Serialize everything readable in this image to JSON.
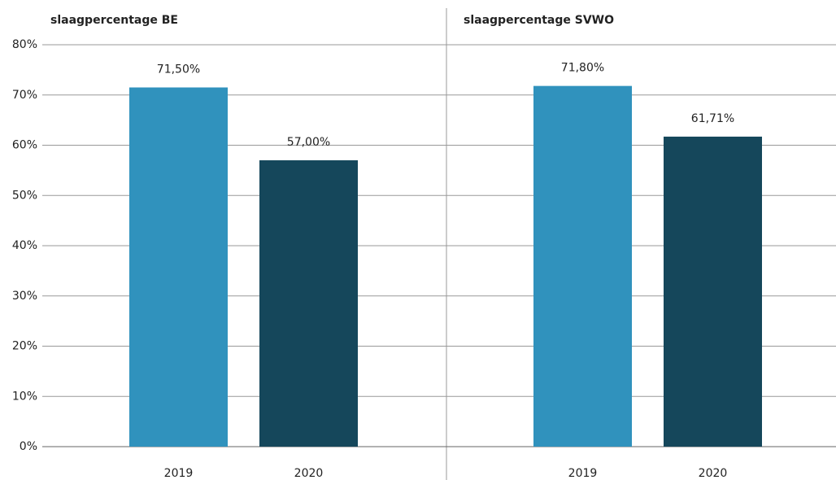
{
  "chart_data": {
    "type": "bar",
    "colors": [
      "#3092bd",
      "#15475b"
    ],
    "ylim": [
      0,
      80
    ],
    "yticks": [
      {
        "value": 0,
        "label": "0%"
      },
      {
        "value": 10,
        "label": "10%"
      },
      {
        "value": 20,
        "label": "20%"
      },
      {
        "value": 30,
        "label": "30%"
      },
      {
        "value": 40,
        "label": "40%"
      },
      {
        "value": 50,
        "label": "50%"
      },
      {
        "value": 60,
        "label": "60%"
      },
      {
        "value": 70,
        "label": "70%"
      },
      {
        "value": 80,
        "label": "80%"
      }
    ],
    "grid": true,
    "panels": [
      {
        "title": "slaagpercentage BE",
        "categories": [
          "2019",
          "2020"
        ],
        "values": [
          71.5,
          57.0
        ],
        "value_labels": [
          "71,50%",
          "57,00%"
        ]
      },
      {
        "title": "slaagpercentage SVWO",
        "categories": [
          "2019",
          "2020"
        ],
        "values": [
          71.8,
          61.71
        ],
        "value_labels": [
          "71,80%",
          "61,71%"
        ]
      }
    ]
  }
}
